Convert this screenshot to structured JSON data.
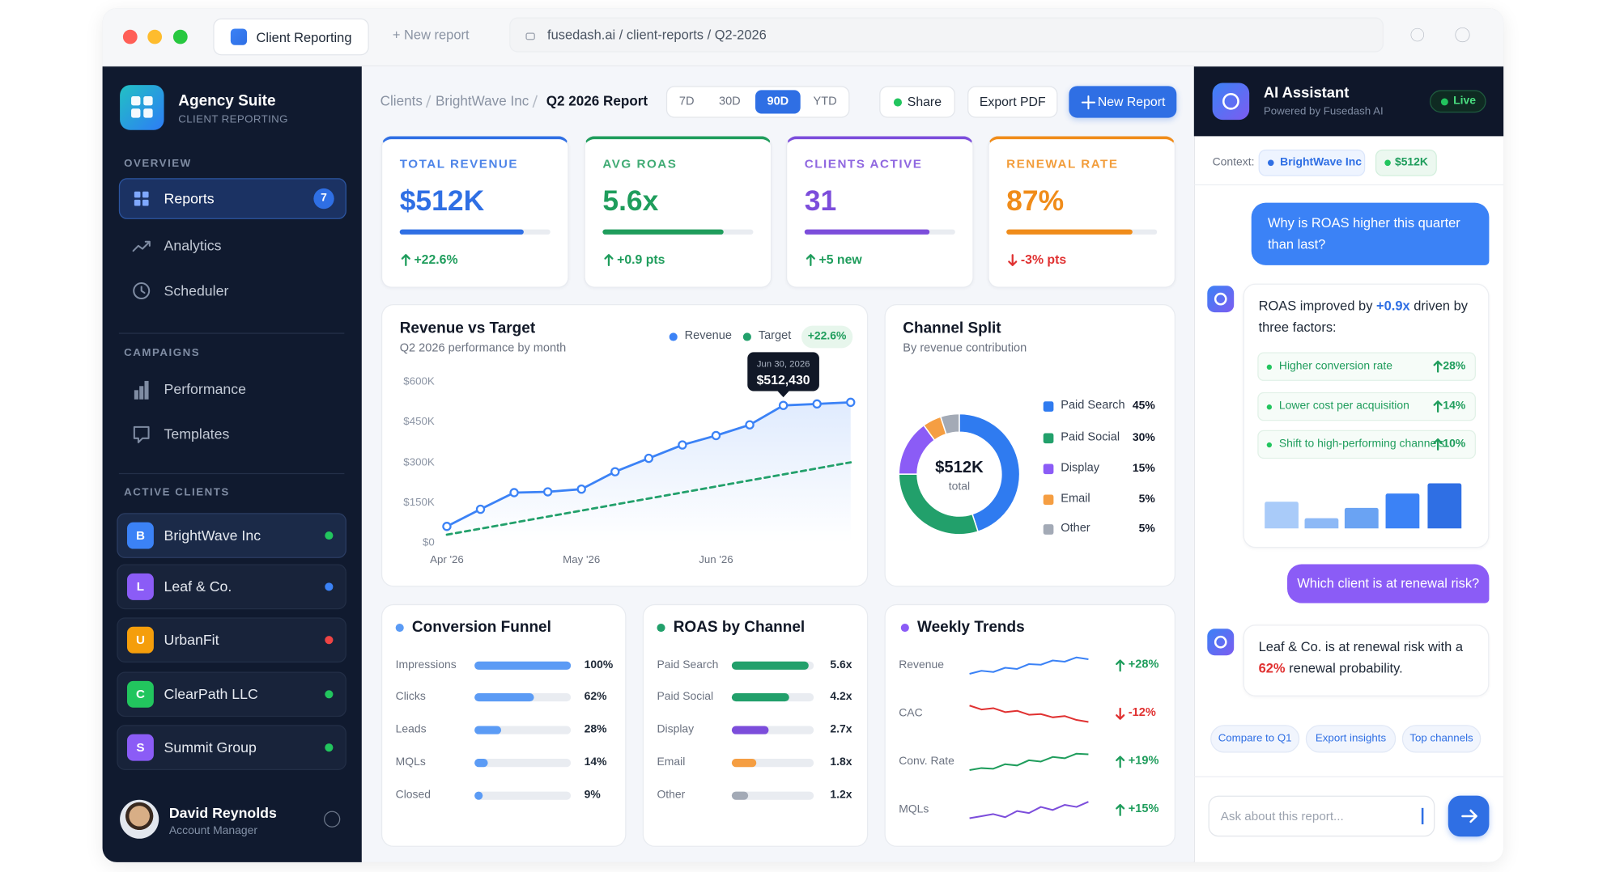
{
  "browser": {
    "tab": "Client Reporting",
    "new_tab": "+ New report",
    "url": "fusedash.ai / client-reports / Q2-2026"
  },
  "sidebar": {
    "brand": "Agency Suite",
    "brand_sub": "CLIENT REPORTING",
    "sections": [
      {
        "title": "OVERVIEW",
        "items": [
          {
            "label": "Reports",
            "badge": "7",
            "active": true
          },
          {
            "label": "Analytics"
          },
          {
            "label": "Scheduler"
          }
        ]
      },
      {
        "title": "CAMPAIGNS",
        "items": [
          {
            "label": "Performance"
          },
          {
            "label": "Templates"
          }
        ]
      }
    ],
    "clients_title": "ACTIVE CLIENTS",
    "clients": [
      {
        "initial": "B",
        "name": "BrightWave Inc",
        "color": "#3b82f6",
        "status": "#22c55e",
        "active": true
      },
      {
        "initial": "L",
        "name": "Leaf & Co.",
        "color": "#8b5cf6",
        "status": "#3b82f6"
      },
      {
        "initial": "U",
        "name": "UrbanFit",
        "color": "#f59e0b",
        "status": "#ef4444"
      },
      {
        "initial": "C",
        "name": "ClearPath LLC",
        "color": "#22c55e",
        "status": "#22c55e"
      },
      {
        "initial": "S",
        "name": "Summit Group",
        "color": "#8b5cf6",
        "status": "#22c55e"
      }
    ],
    "user": {
      "name": "David Reynolds",
      "role": "Account Manager"
    }
  },
  "header": {
    "breadcrumb": [
      "Clients",
      "BrightWave Inc",
      "Q2 2026 Report"
    ],
    "ranges": [
      "7D",
      "30D",
      "90D",
      "YTD"
    ],
    "active_range": 2,
    "actions": [
      "Share",
      "Export PDF",
      "New Report"
    ]
  },
  "kpis": [
    {
      "label": "TOTAL REVENUE",
      "value": "$512K",
      "change": "+22.6%",
      "trend": "up",
      "progress": 82,
      "color": "#2f6fe4"
    },
    {
      "label": "AVG ROAS",
      "value": "5.6x",
      "change": "+0.9 pts",
      "trend": "up",
      "progress": 80,
      "color": "#1f9d5c"
    },
    {
      "label": "CLIENTS ACTIVE",
      "value": "31",
      "change": "+5 new",
      "trend": "up",
      "progress": 83,
      "color": "#7c4ddb"
    },
    {
      "label": "RENEWAL RATE",
      "value": "87%",
      "change": "-3% pts",
      "trend": "down",
      "progress": 84,
      "color": "#f08c1a"
    }
  ],
  "revenue_chart": {
    "type": "line",
    "title": "Revenue vs Target",
    "subtitle": "Q2 2026 performance by month",
    "badge": "+22.6%",
    "categories": [
      "Apr '26",
      null,
      null,
      null,
      "May '26",
      null,
      null,
      null,
      "Jun '26",
      null,
      null,
      null,
      null
    ],
    "series": [
      {
        "name": "Revenue",
        "color": "#3b82f6",
        "markers": true,
        "area": true,
        "values": [
          61000,
          125000,
          187000,
          190000,
          200000,
          265000,
          315000,
          365000,
          400000,
          440000,
          512430,
          518000,
          524000
        ]
      },
      {
        "name": "Target",
        "color": "#22a06b",
        "dashed": true,
        "values": [
          30000,
          52500,
          75000,
          97500,
          120000,
          142500,
          165000,
          187500,
          210000,
          232500,
          255000,
          277500,
          300000
        ]
      }
    ],
    "ylim": [
      0,
      600000
    ],
    "yticks": [
      {
        "value": 0,
        "label": "$0"
      },
      {
        "value": 150000,
        "label": "$150K"
      },
      {
        "value": 300000,
        "label": "$300K"
      },
      {
        "value": 450000,
        "label": "$450K"
      },
      {
        "value": 600000,
        "label": "$600K"
      }
    ],
    "tooltip": {
      "index": 10,
      "date": "Jun 30, 2026",
      "value": "$512,430"
    }
  },
  "channel_split": {
    "type": "pie",
    "title": "Channel Split",
    "subtitle": "By revenue contribution",
    "center_value": "$512K",
    "center_label": "total",
    "categories": [
      "Paid Search",
      "Paid Social",
      "Display",
      "Email",
      "Other"
    ],
    "values": [
      45,
      30,
      15,
      5,
      5
    ],
    "value_labels": [
      "45%",
      "30%",
      "15%",
      "5%",
      "5%"
    ],
    "colors": [
      "#2f7bf0",
      "#22a06b",
      "#8b5cf6",
      "#f59e42",
      "#a3aab6"
    ]
  },
  "conversion_funnel": {
    "type": "bar",
    "title": "Conversion Funnel",
    "color": "#5b9bf5",
    "categories": [
      "Impressions",
      "Clicks",
      "Leads",
      "MQLs",
      "Closed"
    ],
    "values": [
      100,
      62,
      28,
      14,
      9
    ],
    "value_labels": [
      "100%",
      "62%",
      "28%",
      "14%",
      "9%"
    ],
    "xlim": [
      0,
      100
    ]
  },
  "roas_by_channel": {
    "type": "bar",
    "title": "ROAS by Channel",
    "color": "#22a06b",
    "categories": [
      "Paid Search",
      "Paid Social",
      "Display",
      "Email",
      "Other"
    ],
    "values": [
      5.6,
      4.2,
      2.7,
      1.8,
      1.2
    ],
    "value_labels": [
      "5.6x",
      "4.2x",
      "2.7x",
      "1.8x",
      "1.2x"
    ],
    "colors": [
      "#22a06b",
      "#22a06b",
      "#7c4ddb",
      "#f59e42",
      "#a3aab6"
    ],
    "xlim": [
      0,
      6
    ]
  },
  "weekly_trends": {
    "type": "sparkline",
    "title": "Weekly Trends",
    "color": "#8b5cf6",
    "rows": [
      {
        "label": "Revenue",
        "change": "+28%",
        "trend": "up",
        "color": "#3b82f6",
        "values": [
          3,
          4,
          3.6,
          5,
          4.6,
          6.2,
          6,
          7.4,
          7,
          8.4,
          7.8
        ]
      },
      {
        "label": "CAC",
        "change": "-12%",
        "trend": "down",
        "color": "#e03131",
        "values": [
          9.6,
          8.4,
          8.8,
          7.6,
          8,
          6.8,
          7,
          6,
          6.4,
          5.2,
          4.6
        ]
      },
      {
        "label": "Conv. Rate",
        "change": "+19%",
        "trend": "up",
        "color": "#1f9d5c",
        "values": [
          2,
          2.6,
          2.4,
          3.8,
          3.4,
          5,
          4.6,
          6,
          5.6,
          7,
          6.8
        ]
      },
      {
        "label": "MQLs",
        "change": "+15%",
        "trend": "up",
        "color": "#7c4ddb",
        "values": [
          3,
          3.4,
          3.8,
          3.2,
          4.4,
          4,
          5.2,
          4.6,
          5.6,
          5.2,
          6.2
        ]
      }
    ]
  },
  "assistant": {
    "title": "AI Assistant",
    "subtitle": "Powered by Fusedash AI",
    "status": "Live",
    "context_label": "Context:",
    "context_chips": [
      "BrightWave Inc",
      "$512K"
    ],
    "user_message_1": "Why is ROAS higher this quarter than last?",
    "reply_1": {
      "before": "ROAS improved by ",
      "highlight": "+0.9x",
      "after": " driven by three factors:"
    },
    "factors": [
      {
        "label": "Higher conversion rate",
        "value": "28%"
      },
      {
        "label": "Lower cost per acquisition",
        "value": "14%"
      },
      {
        "label": "Shift to high-performing channels",
        "value": "10%"
      }
    ],
    "insight_bars": {
      "values": [
        26,
        10,
        20,
        34,
        44
      ],
      "colors": [
        "#a9cbf9",
        "#8db9f6",
        "#6aa3f3",
        "#3b82f6",
        "#2f6fe4"
      ]
    },
    "user_message_2": "Which client is at renewal risk?",
    "reply_2": {
      "before": "Leaf & Co. is at renewal risk with a ",
      "highlight": "62%",
      "after": " renewal probability."
    },
    "quick_actions": [
      "Compare to Q1",
      "Export insights",
      "Top channels"
    ],
    "input_placeholder": "Ask about this report..."
  }
}
